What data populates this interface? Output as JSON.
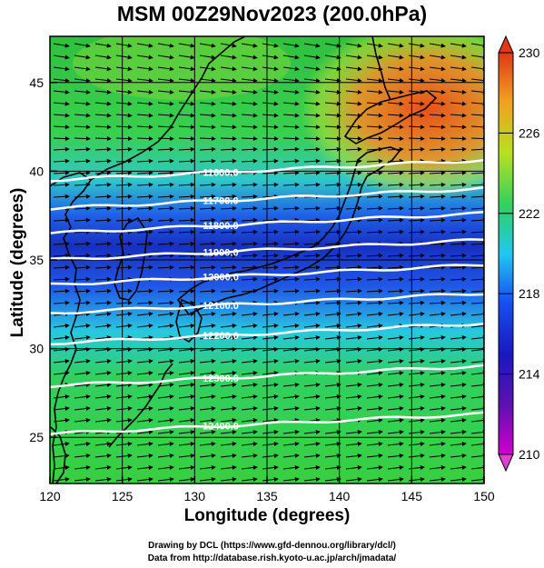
{
  "title": "MSM 00Z29Nov2023 (200.0hPa)",
  "xlabel": "Longitude (degrees)",
  "ylabel": "Latitude  (degrees)",
  "credits": [
    "Drawing by DCL (https://www.gfd-dennou.org/library/dcl/)",
    "Data from http://database.rish.kyoto-u.ac.jp/arch/jmadata/"
  ],
  "map": {
    "lon_range": [
      120,
      150
    ],
    "lat_range": [
      22.4,
      47.6
    ],
    "x_ticks": [
      "120",
      "125",
      "130",
      "135",
      "140",
      "145",
      "150"
    ],
    "y_ticks": [
      "25",
      "30",
      "35",
      "40",
      "45"
    ],
    "grid": true,
    "colorbar": {
      "min": 210,
      "max": 230,
      "labels": [
        "230",
        "226",
        "222",
        "218",
        "214",
        "210"
      ],
      "colors": [
        "#c000c0",
        "#1010a0",
        "#1040e0",
        "#20c8e8",
        "#30d060",
        "#b8e020",
        "#f0a020",
        "#e04818"
      ]
    },
    "contours": [
      {
        "label": "11600.0",
        "lat": 39.5
      },
      {
        "label": "11700.0",
        "lat": 37.9
      },
      {
        "label": "11800.0",
        "lat": 36.5
      },
      {
        "label": "11900.0",
        "lat": 35.0
      },
      {
        "label": "12000.0",
        "lat": 33.6
      },
      {
        "label": "12100.0",
        "lat": 32.0
      },
      {
        "label": "12200.0",
        "lat": 30.3
      },
      {
        "label": "12300.0",
        "lat": 27.9
      },
      {
        "label": "12400.0",
        "lat": 25.2
      }
    ]
  }
}
